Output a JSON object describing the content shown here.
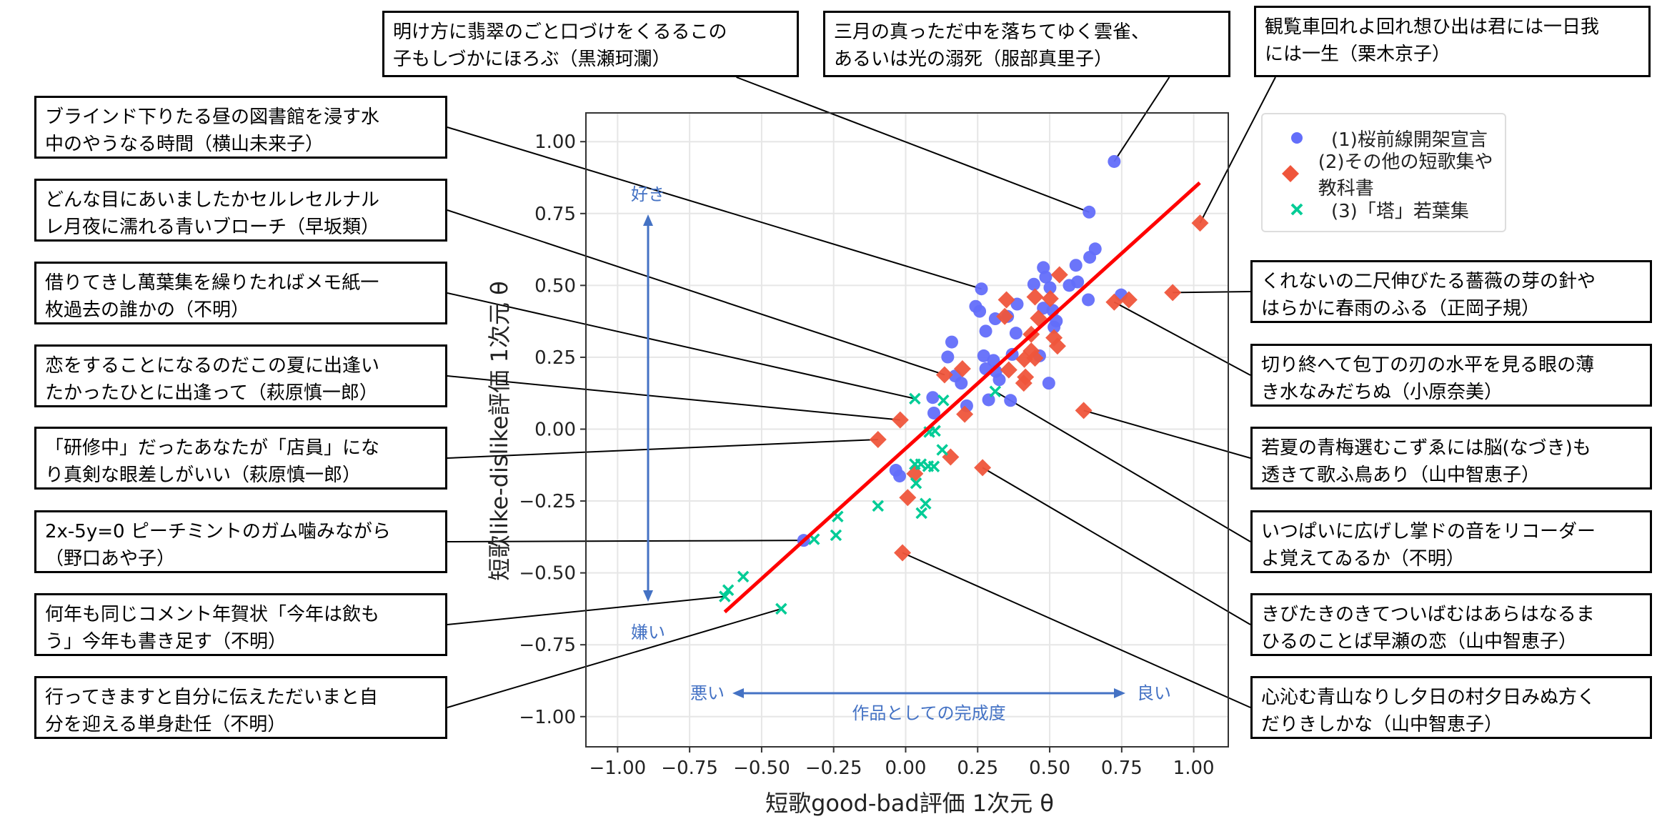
{
  "chart_data": {
    "type": "scatter",
    "xlabel": "短歌good-bad評価 1次元 θ",
    "ylabel": "短歌like-dislike評価 1次元 θ",
    "xlim": [
      -1.11,
      1.12
    ],
    "ylim": [
      -1.105,
      1.1
    ],
    "xticks": [
      -1.0,
      -0.75,
      -0.5,
      -0.25,
      0.0,
      0.25,
      0.5,
      0.75,
      1.0
    ],
    "yticks": [
      -1.0,
      -0.75,
      -0.5,
      -0.25,
      0.0,
      0.25,
      0.5,
      0.75,
      1.0
    ],
    "xtick_labels": [
      "−1.00",
      "−0.75",
      "−0.50",
      "−0.25",
      "0.00",
      "0.25",
      "0.50",
      "0.75",
      "1.00"
    ],
    "ytick_labels": [
      "−1.00",
      "−0.75",
      "−0.50",
      "−0.25",
      "0.00",
      "0.25",
      "0.50",
      "0.75",
      "1.00"
    ],
    "grid": true,
    "legend_position": "top-right",
    "series": [
      {
        "name": "(1)桜前線開架宣言",
        "marker": "circle",
        "color": "#636efa",
        "points": [
          [
            0.724,
            0.931
          ],
          [
            0.637,
            0.755
          ],
          [
            0.658,
            0.627
          ],
          [
            0.639,
            0.598
          ],
          [
            0.591,
            0.57
          ],
          [
            0.478,
            0.562
          ],
          [
            0.486,
            0.529
          ],
          [
            0.445,
            0.504
          ],
          [
            0.501,
            0.492
          ],
          [
            0.568,
            0.5
          ],
          [
            0.597,
            0.512
          ],
          [
            0.634,
            0.45
          ],
          [
            0.748,
            0.467
          ],
          [
            0.263,
            0.488
          ],
          [
            0.387,
            0.435
          ],
          [
            0.243,
            0.427
          ],
          [
            0.257,
            0.41
          ],
          [
            0.311,
            0.384
          ],
          [
            0.478,
            0.421
          ],
          [
            0.511,
            0.413
          ],
          [
            0.523,
            0.376
          ],
          [
            0.515,
            0.355
          ],
          [
            0.278,
            0.341
          ],
          [
            0.383,
            0.334
          ],
          [
            0.16,
            0.303
          ],
          [
            0.146,
            0.251
          ],
          [
            0.271,
            0.255
          ],
          [
            0.305,
            0.239
          ],
          [
            0.37,
            0.26
          ],
          [
            0.465,
            0.255
          ],
          [
            0.278,
            0.21
          ],
          [
            0.313,
            0.201
          ],
          [
            0.325,
            0.172
          ],
          [
            0.172,
            0.185
          ],
          [
            0.193,
            0.16
          ],
          [
            0.497,
            0.16
          ],
          [
            0.094,
            0.11
          ],
          [
            0.098,
            0.056
          ],
          [
            0.212,
            0.081
          ],
          [
            0.288,
            0.102
          ],
          [
            0.364,
            0.1
          ],
          [
            0.354,
            0.392
          ],
          [
            -0.034,
            -0.143
          ],
          [
            -0.021,
            -0.163
          ],
          [
            -0.354,
            -0.387
          ]
        ]
      },
      {
        "name": "(2)その他の短歌集や教科書",
        "marker": "diamond",
        "color": "#ef553b",
        "points": [
          [
            1.022,
            0.717
          ],
          [
            0.534,
            0.537
          ],
          [
            0.35,
            0.45
          ],
          [
            0.449,
            0.46
          ],
          [
            0.502,
            0.454
          ],
          [
            0.344,
            0.392
          ],
          [
            0.461,
            0.386
          ],
          [
            0.927,
            0.475
          ],
          [
            0.724,
            0.442
          ],
          [
            0.775,
            0.45
          ],
          [
            0.436,
            0.33
          ],
          [
            0.515,
            0.318
          ],
          [
            0.527,
            0.289
          ],
          [
            0.436,
            0.272
          ],
          [
            0.412,
            0.243
          ],
          [
            0.449,
            0.247
          ],
          [
            0.197,
            0.21
          ],
          [
            0.358,
            0.206
          ],
          [
            0.135,
            0.189
          ],
          [
            0.416,
            0.181
          ],
          [
            0.41,
            0.16
          ],
          [
            0.205,
            0.052
          ],
          [
            -0.019,
            0.032
          ],
          [
            0.618,
            0.065
          ],
          [
            -0.096,
            -0.036
          ],
          [
            0.156,
            -0.097
          ],
          [
            0.032,
            -0.155
          ],
          [
            0.007,
            -0.238
          ],
          [
            0.267,
            -0.134
          ],
          [
            -0.011,
            -0.43
          ]
        ]
      },
      {
        "name": "(3)「塔」若葉集",
        "marker": "x",
        "color": "#00cc96",
        "points": [
          [
            0.032,
            0.106
          ],
          [
            0.131,
            0.1
          ],
          [
            0.311,
            0.131
          ],
          [
            0.082,
            -0.01
          ],
          [
            0.102,
            -0.006
          ],
          [
            0.127,
            -0.072
          ],
          [
            0.032,
            -0.122
          ],
          [
            0.053,
            -0.122
          ],
          [
            0.078,
            -0.129
          ],
          [
            0.098,
            -0.13
          ],
          [
            0.036,
            -0.188
          ],
          [
            -0.096,
            -0.267
          ],
          [
            0.069,
            -0.259
          ],
          [
            0.055,
            -0.292
          ],
          [
            -0.236,
            -0.304
          ],
          [
            -0.242,
            -0.369
          ],
          [
            -0.318,
            -0.383
          ],
          [
            -0.564,
            -0.513
          ],
          [
            -0.616,
            -0.56
          ],
          [
            -0.628,
            -0.582
          ],
          [
            -0.432,
            -0.625
          ]
        ]
      }
    ],
    "regression_line": {
      "color": "#ff0000",
      "from": [
        -0.628,
        -0.636
      ],
      "to": [
        1.021,
        0.857
      ]
    },
    "axis_annotations": {
      "like": "好き",
      "dislike": "嫌い",
      "bad": "悪い",
      "good": "良い",
      "quality": "作品としての完成度",
      "arrow_color": "#4472c4"
    },
    "annotations": [
      {
        "text": "明け方に翡翠のごと口づけをくるるこの\n子もしづかにほろぶ（黒瀬珂瀾）",
        "point": [
          0.637,
          0.755
        ]
      },
      {
        "text": "三月の真っただ中を落ちてゆく雲雀、\nあるいは光の溺死（服部真里子）",
        "point": [
          0.724,
          0.931
        ]
      },
      {
        "text": "観覧車回れよ回れ想ひ出は君には一日我\nには一生（栗木京子）",
        "point": [
          1.022,
          0.717
        ]
      },
      {
        "text": "ブラインド下りたる昼の図書館を浸す水\n中のやうなる時間（横山未来子）",
        "point": [
          0.263,
          0.488
        ]
      },
      {
        "text": "どんな目にあいましたかセルレセルナル\nレ月夜に濡れる青いブローチ（早坂類）",
        "point": [
          0.135,
          0.189
        ]
      },
      {
        "text": "借りてきし萬葉集を繰りたればメモ紙一\n枚過去の誰かの（不明）",
        "point": [
          0.032,
          0.106
        ]
      },
      {
        "text": "恋をすることになるのだこの夏に出逢い\nたかったひとに出逢って（萩原慎一郎）",
        "point": [
          -0.019,
          0.032
        ]
      },
      {
        "text": "「研修中」だったあなたが「店員」にな\nり真剣な眼差しがいい（萩原慎一郎）",
        "point": [
          -0.096,
          -0.036
        ]
      },
      {
        "text": "2x-5y=0 ピーチミントのガム噛みながら\n（野口あや子）",
        "point": [
          -0.354,
          -0.387
        ]
      },
      {
        "text": "何年も同じコメント年賀状「今年は飲も\nう」今年も書き足す（不明）",
        "point": [
          -0.628,
          -0.582
        ]
      },
      {
        "text": "行ってきますと自分に伝えただいまと自\n分を迎える単身赴任（不明）",
        "point": [
          -0.432,
          -0.625
        ]
      },
      {
        "text": "くれないの二尺伸びたる薔薇の芽の針や\nはらかに春雨のふる（正岡子規）",
        "point": [
          0.927,
          0.475
        ]
      },
      {
        "text": "切り終へて包丁の刃の水平を見る眼の薄\nき水なみだちぬ（小原奈美）",
        "point": [
          0.724,
          0.442
        ]
      },
      {
        "text": "若夏の青梅選むこずゑには脳(なづき)も\n透きて歌ふ鳥あり（山中智恵子）",
        "point": [
          0.618,
          0.065
        ]
      },
      {
        "text": "いつぱいに広げし掌ドの音をリコーダー\nよ覚えてゐるか（不明）",
        "point": [
          0.311,
          0.131
        ]
      },
      {
        "text": "きびたきのきてついばむはあらはなるま\nひるのことば早瀬の恋（山中智恵子）",
        "point": [
          0.267,
          -0.134
        ]
      },
      {
        "text": "心沁む青山なりし夕日の村夕日みぬ方く\nだりきしかな（山中智恵子）",
        "point": [
          -0.011,
          -0.43
        ]
      }
    ]
  }
}
